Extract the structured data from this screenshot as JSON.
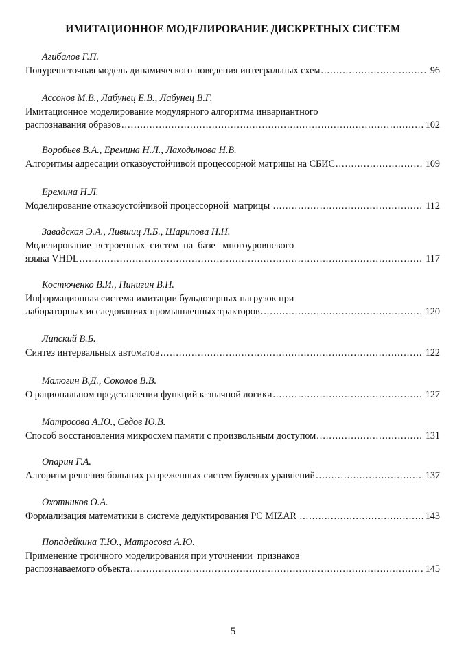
{
  "heading": "ИМИТАЦИОННОЕ МОДЕЛИРОВАНИЕ ДИСКРЕТНЫХ СИСТЕМ",
  "entries": [
    {
      "authors": "Агибалов Г.П.",
      "lines": [
        "Полурешеточная модель динамического поведения интегральных схем"
      ],
      "page": "96"
    },
    {
      "authors": "Ассонов М.В., Лабунец Е.В., Лабунец В.Г.",
      "lines": [
        "Имитационное моделирование модулярного алгоритма инвариантного",
        "распознавания образов"
      ],
      "page": "102"
    },
    {
      "authors": "Воробьев В.А., Еремина Н.Л., Лаходынова Н.В.",
      "lines": [
        "Алгоритмы адресации отказоустойчивой процессорной матрицы на СБИС"
      ],
      "page": "109"
    },
    {
      "authors": "Еремина Н.Л.",
      "lines": [
        "Моделирование отказоустойчивой процессорной  матрицы "
      ],
      "page": "112"
    },
    {
      "authors": "Завадская Э.А., Лившиц Л.Б., Шарипова Н.Н.",
      "lines": [
        "Моделирование  встроенных  систем  на  базе   многоуровневого",
        "языка VHDL"
      ],
      "page": "117"
    },
    {
      "authors": "Костюченко В.И., Пинигин В.Н.",
      "lines": [
        "Информационная система имитации бульдозерных нагрузок при",
        "лабораторных исследованиях промышленных тракторов"
      ],
      "page": "120"
    },
    {
      "authors": "Липский В.Б.",
      "lines": [
        "Синтез интервальных автоматов"
      ],
      "page": "122"
    },
    {
      "authors": "Малюгин В.Д., Соколов В.В.",
      "lines": [
        "О рациональном представлении функций к-значной логики"
      ],
      "page": "127"
    },
    {
      "authors": "Матросова А.Ю., Седов Ю.В.",
      "lines": [
        "Способ восстановления микросхем памяти с произвольным доступом"
      ],
      "page": "131"
    },
    {
      "authors": "Опарин Г.А.",
      "lines": [
        "Алгоритм решения больших разреженных систем булевых уравнений"
      ],
      "page": "137"
    },
    {
      "authors": "Охотников О.А.",
      "lines": [
        "Формализация математики в системе дедуктирования PC MIZAR "
      ],
      "page": "143"
    },
    {
      "authors": "Попадейкина Т.Ю., Матросова А.Ю.",
      "lines": [
        "Применение троичного моделирования при уточнении  признаков",
        "распознаваемого объекта"
      ],
      "page": "145"
    }
  ],
  "page_number": "5"
}
